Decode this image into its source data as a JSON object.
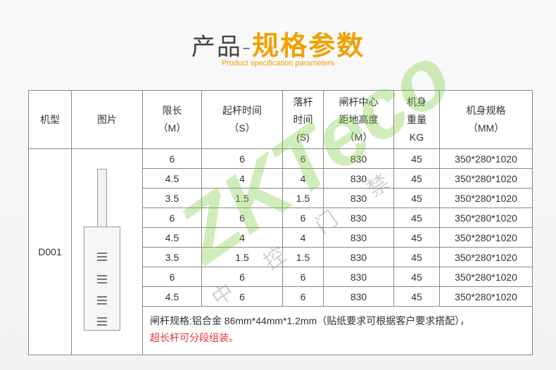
{
  "header": {
    "title_thin": "产品-",
    "title_bold": "规格参数",
    "subtitle": "Product specification parameters"
  },
  "table": {
    "headers": [
      [
        "机型"
      ],
      [
        "图片"
      ],
      [
        "限长",
        "（M）"
      ],
      [
        "起杆时间",
        "（S）"
      ],
      [
        "落杆",
        "时间",
        "(S)"
      ],
      [
        "闸杆中心",
        "距地高度",
        "（M）"
      ],
      [
        "机身",
        "重量",
        "KG"
      ],
      [
        "机身规格",
        "（MM）"
      ]
    ],
    "model": "D001",
    "rows": [
      [
        "6",
        "6",
        "6",
        "830",
        "45",
        "350*280*1020"
      ],
      [
        "4.5",
        "4",
        "4",
        "830",
        "45",
        "350*280*1020"
      ],
      [
        "3.5",
        "1.5",
        "1.5",
        "830",
        "45",
        "350*280*1020"
      ],
      [
        "6",
        "6",
        "6",
        "830",
        "45",
        "350*280*1020"
      ],
      [
        "4.5",
        "4",
        "4",
        "830",
        "45",
        "350*280*1020"
      ],
      [
        "3.5",
        "1.5",
        "1.5",
        "830",
        "45",
        "350*280*1020"
      ],
      [
        "6",
        "6",
        "6",
        "830",
        "45",
        "350*280*1020"
      ],
      [
        "4.5",
        "6",
        "6",
        "830",
        "45",
        "350*280*1020"
      ]
    ],
    "note": "闸杆规格:铝合金 86mm*44mm*1.2mm（贴纸要求可根据客户要求搭配），",
    "note_red": "超长杆可分段组装。"
  },
  "watermark": {
    "logo": "ZKTeco",
    "text": "中控门禁"
  },
  "colors": {
    "accent": "#f0a000",
    "red": "#e8343c"
  }
}
